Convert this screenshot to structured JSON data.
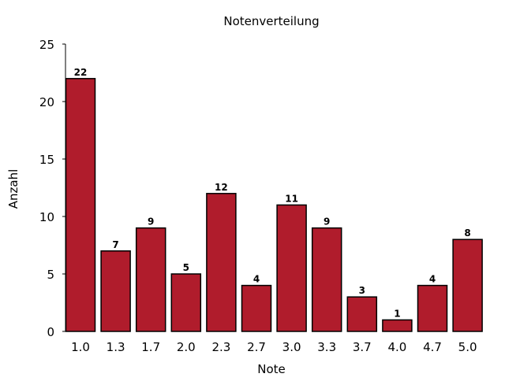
{
  "chart_data": {
    "type": "bar",
    "title": "Notenverteilung",
    "xlabel": "Note",
    "ylabel": "Anzahl",
    "categories": [
      "1.0",
      "1.3",
      "1.7",
      "2.0",
      "2.3",
      "2.7",
      "3.0",
      "3.3",
      "3.7",
      "4.0",
      "4.7",
      "5.0"
    ],
    "values": [
      22,
      7,
      9,
      5,
      12,
      4,
      11,
      9,
      3,
      1,
      4,
      8
    ],
    "ylim": [
      0,
      25
    ],
    "yticks": [
      0,
      5,
      10,
      15,
      20,
      25
    ],
    "grid": false,
    "bar_color": "#b01c2c",
    "edge_color": "#000000",
    "data_labels": true
  }
}
